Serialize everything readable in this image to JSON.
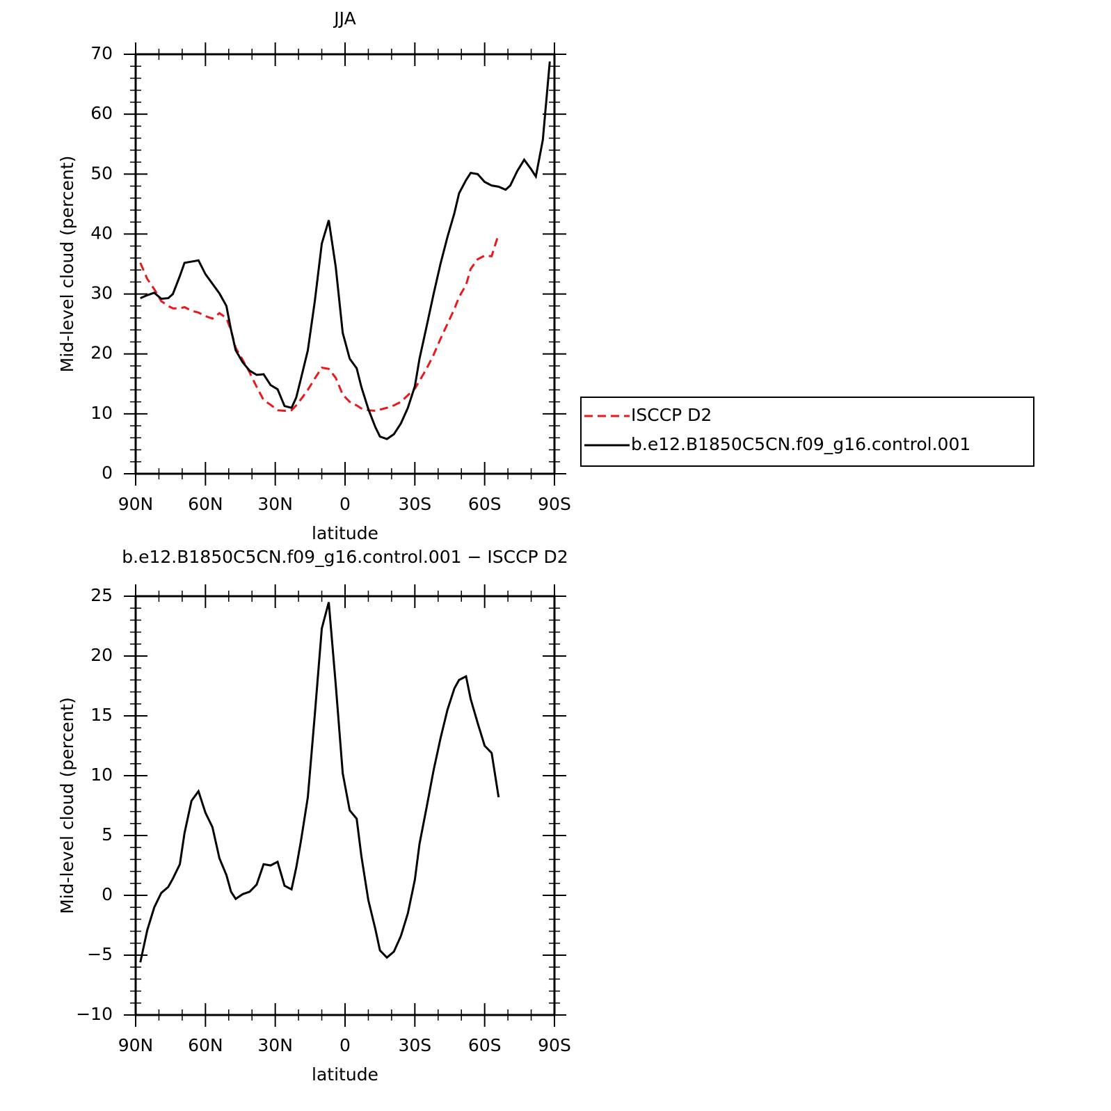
{
  "chart_data": [
    {
      "type": "line",
      "title": "JJA",
      "xlabel": "latitude",
      "ylabel": "Mid-level cloud (percent)",
      "x": [
        88,
        85,
        82,
        79,
        76,
        74,
        71,
        69,
        66,
        63,
        60,
        57,
        54,
        51,
        49,
        47,
        44,
        41,
        38,
        35,
        32,
        29,
        26,
        23,
        21,
        19,
        16,
        13,
        10,
        7,
        4,
        1,
        -2,
        -5,
        -7,
        -10,
        -13,
        -15,
        -18,
        -21,
        -24,
        -27,
        -30,
        -32,
        -35,
        -38,
        -41,
        -44,
        -47,
        -49,
        -52,
        -54,
        -57,
        -60,
        -63,
        -66,
        -69,
        -71,
        -74,
        -77,
        -80,
        -82,
        -85,
        -88
      ],
      "series": [
        {
          "name": "ISCCP D2",
          "color": "#e8191c",
          "linestyle": "dashed",
          "values": [
            35.2,
            32.5,
            30.8,
            28.8,
            28.0,
            27.6,
            27.6,
            27.8,
            27.2,
            26.9,
            26.3,
            25.9,
            26.8,
            26.0,
            23.9,
            21.0,
            19.0,
            16.9,
            14.5,
            12.3,
            11.5,
            10.6,
            10.5,
            10.6,
            11.4,
            12.4,
            14.0,
            15.9,
            17.7,
            17.5,
            16.0,
            13.2,
            12.0,
            11.4,
            10.9,
            10.6,
            10.5,
            10.7,
            11.0,
            11.4,
            12.0,
            13.1,
            14.2,
            15.5,
            17.5,
            19.8,
            22.5,
            25.0,
            27.5,
            29.5,
            31.5,
            34.2,
            35.8,
            36.4,
            36.3,
            40.0,
            null,
            null,
            null,
            null,
            null,
            null,
            null,
            null
          ]
        },
        {
          "name": "b.e12.B1850C5CN.f09_g16.control.001",
          "color": "#000000",
          "linestyle": "solid",
          "values": [
            29.3,
            29.8,
            30.2,
            29.2,
            29.3,
            30.0,
            33.0,
            35.2,
            35.4,
            35.6,
            33.3,
            31.7,
            30.1,
            28.0,
            24.0,
            20.6,
            18.6,
            17.2,
            16.5,
            16.6,
            14.8,
            14.1,
            11.3,
            11.0,
            12.7,
            15.8,
            20.6,
            28.8,
            38.4,
            42.3,
            34.5,
            23.5,
            19.2,
            17.6,
            14.5,
            10.8,
            7.8,
            6.2,
            5.8,
            6.6,
            8.4,
            11.0,
            14.6,
            19.2,
            24.5,
            29.9,
            35.0,
            39.5,
            43.5,
            46.8,
            49.0,
            50.2,
            50.0,
            48.7,
            48.1,
            47.9,
            47.4,
            48.1,
            50.5,
            52.4,
            50.8,
            49.6,
            55.7,
            68.8
          ]
        }
      ],
      "xlim": [
        90,
        -90
      ],
      "xticks": [
        {
          "value": 90,
          "label": "90N"
        },
        {
          "value": 60,
          "label": "60N"
        },
        {
          "value": 30,
          "label": "30N"
        },
        0,
        {
          "value": -30,
          "label": "30S"
        },
        {
          "value": -60,
          "label": "60S"
        },
        {
          "value": -90,
          "label": "90S"
        }
      ],
      "ylim": [
        0,
        70
      ],
      "yticks": [
        0,
        10,
        20,
        30,
        40,
        50,
        60,
        70
      ],
      "legend": "right"
    },
    {
      "type": "line",
      "title": "b.e12.B1850C5CN.f09_g16.control.001 − ISCCP D2",
      "xlabel": "latitude",
      "ylabel": "Mid-level cloud (percent)",
      "x": [
        88,
        85,
        82,
        79,
        76,
        74,
        71,
        69,
        66,
        63,
        60,
        57,
        54,
        51,
        49,
        47,
        44,
        41,
        38,
        35,
        32,
        29,
        26,
        23,
        21,
        19,
        16,
        13,
        10,
        7,
        4,
        1,
        -2,
        -5,
        -7,
        -10,
        -13,
        -15,
        -18,
        -21,
        -24,
        -27,
        -30,
        -32,
        -35,
        -38,
        -41,
        -44,
        -47,
        -49,
        -52,
        -54,
        -57,
        -60,
        -63,
        -66,
        -69,
        -71,
        -74,
        -77,
        -80,
        -82,
        -85,
        -88
      ],
      "series": [
        {
          "color": "#000000",
          "linestyle": "solid",
          "values": [
            -5.6,
            -2.9,
            -1.0,
            0.2,
            0.7,
            1.4,
            2.6,
            5.2,
            7.9,
            8.7,
            6.9,
            5.7,
            3.1,
            1.7,
            0.3,
            -0.3,
            0.1,
            0.3,
            0.9,
            2.6,
            2.5,
            2.8,
            0.8,
            0.5,
            2.3,
            4.5,
            8.2,
            15.1,
            22.3,
            24.5,
            17.6,
            10.2,
            7.1,
            6.4,
            3.3,
            -0.4,
            -2.8,
            -4.6,
            -5.2,
            -4.7,
            -3.4,
            -1.5,
            1.3,
            4.3,
            7.3,
            10.4,
            13.1,
            15.5,
            17.3,
            18.0,
            18.3,
            16.4,
            14.4,
            12.5,
            11.9,
            8.2,
            null,
            null,
            null,
            null,
            null,
            null,
            null,
            null
          ]
        }
      ],
      "xlim": [
        90,
        -90
      ],
      "xticks": [
        {
          "value": 90,
          "label": "90N"
        },
        {
          "value": 60,
          "label": "60N"
        },
        {
          "value": 30,
          "label": "30N"
        },
        0,
        {
          "value": -30,
          "label": "30S"
        },
        {
          "value": -60,
          "label": "60S"
        },
        {
          "value": -90,
          "label": "90S"
        }
      ],
      "ylim": [
        -10,
        25
      ],
      "yticks": [
        {
          "value": -10,
          "label": "−10"
        },
        {
          "value": -5,
          "label": "−5"
        },
        0,
        5,
        10,
        15,
        20,
        25
      ]
    }
  ]
}
